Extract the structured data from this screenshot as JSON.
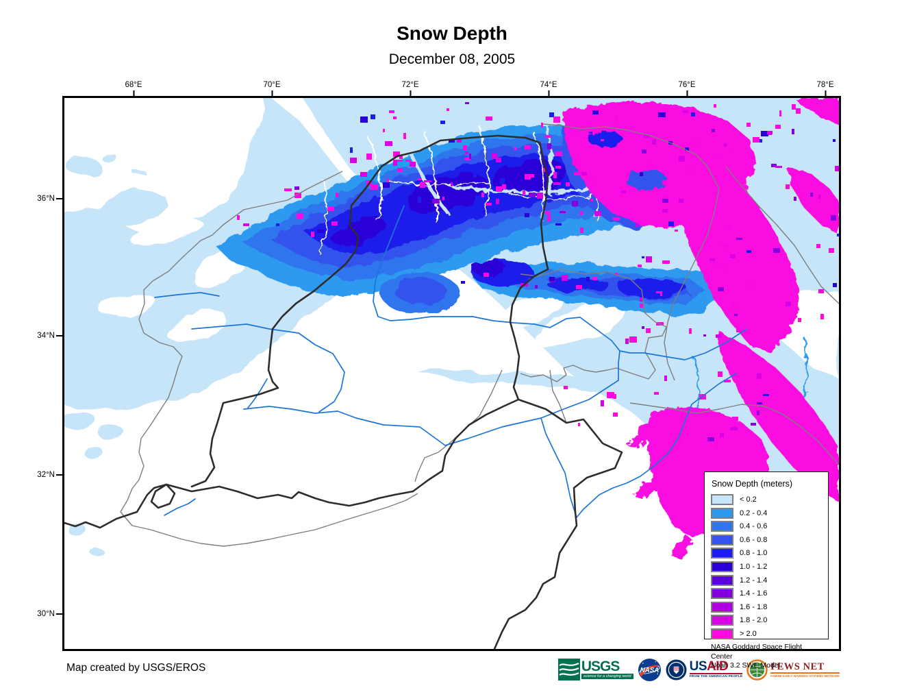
{
  "title": "Snow Depth",
  "subtitle": "December 08, 2005",
  "axes": {
    "top": [
      {
        "label": "68°E"
      },
      {
        "label": "70°E"
      },
      {
        "label": "72°E"
      },
      {
        "label": "74°E"
      },
      {
        "label": "76°E"
      },
      {
        "label": "78°E"
      }
    ],
    "left": [
      {
        "label": "36°N"
      },
      {
        "label": "34°N"
      },
      {
        "label": "32°N"
      },
      {
        "label": "30°N"
      }
    ]
  },
  "legend": {
    "title": "Snow Depth (meters)",
    "classes": [
      {
        "label": "< 0.2",
        "color": "#C7E5F8"
      },
      {
        "label": "0.2 - 0.4",
        "color": "#2E9AEF"
      },
      {
        "label": "0.4 - 0.6",
        "color": "#2E75EE"
      },
      {
        "label": "0.6 - 0.8",
        "color": "#3353EC"
      },
      {
        "label": "0.8 - 1.0",
        "color": "#1C1CEB"
      },
      {
        "label": "1.0 - 1.2",
        "color": "#2B00D6"
      },
      {
        "label": "1.2 - 1.4",
        "color": "#5A00D8"
      },
      {
        "label": "1.4 - 1.6",
        "color": "#8400DC"
      },
      {
        "label": "1.6 - 1.8",
        "color": "#AE00E0"
      },
      {
        "label": "1.8 - 2.0",
        "color": "#D800E4"
      },
      {
        "label": "> 2.0",
        "color": "#FA09E1"
      }
    ],
    "source_line1": "NASA Goddard Space Flight Center",
    "source_line2": "Noah 3.2 SWE Model."
  },
  "map_colors": {
    "river": "#1B74D8",
    "basin_boundary": "#2D2D2D",
    "subbasin_boundary": "#7E7E7E"
  },
  "credit": "Map created by USGS/EROS",
  "logos": {
    "usgs": {
      "name": "USGS",
      "tagline": "science for a changing world"
    },
    "nasa": {
      "name": "NASA"
    },
    "usaid": {
      "name_us": "US",
      "name_aid": "AID",
      "tagline": "FROM THE AMERICAN PEOPLE"
    },
    "fewsnet": {
      "name": "FEWS NET",
      "tagline": "FAMINE EARLY WARNING SYSTEMS NETWORK"
    }
  }
}
